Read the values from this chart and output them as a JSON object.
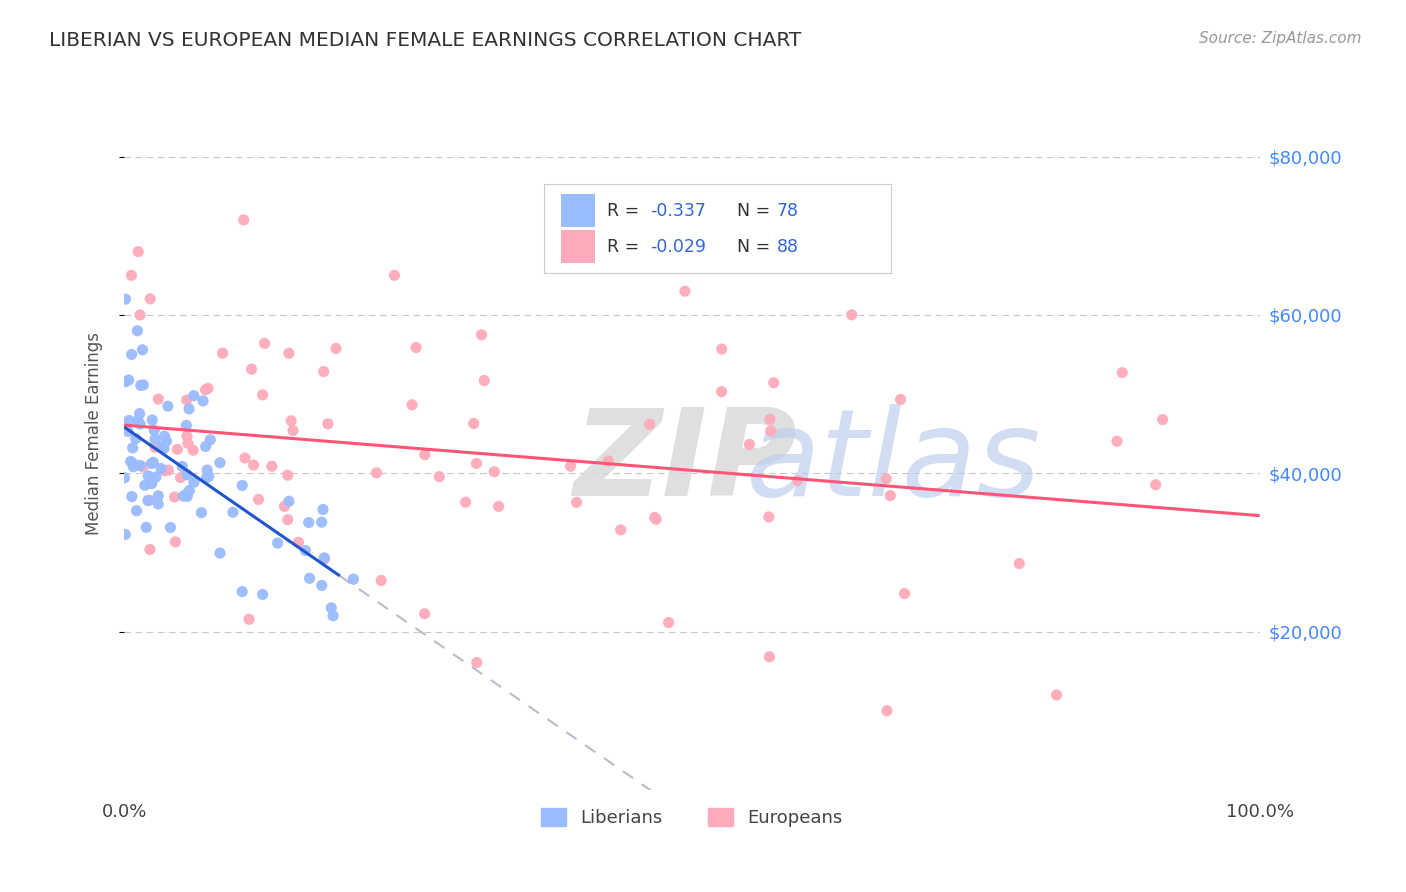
{
  "title": "LIBERIAN VS EUROPEAN MEDIAN FEMALE EARNINGS CORRELATION CHART",
  "source_text": "Source: ZipAtlas.com",
  "ylabel": "Median Female Earnings",
  "xlim": [
    0,
    1.0
  ],
  "ylim": [
    0,
    90000
  ],
  "background_color": "#ffffff",
  "grid_color": "#c8c8c8",
  "liberian_color": "#99bbff",
  "european_color": "#ffaabb",
  "liberian_line_color": "#2255cc",
  "european_line_color": "#ff5577",
  "dash_color": "#bbbbcc",
  "label_color": "#4488ff",
  "title_color": "#333333",
  "source_color": "#999999",
  "axis_label_color": "#555555",
  "liberian_R": -0.337,
  "liberian_N": 78,
  "european_R": -0.029,
  "european_N": 88
}
